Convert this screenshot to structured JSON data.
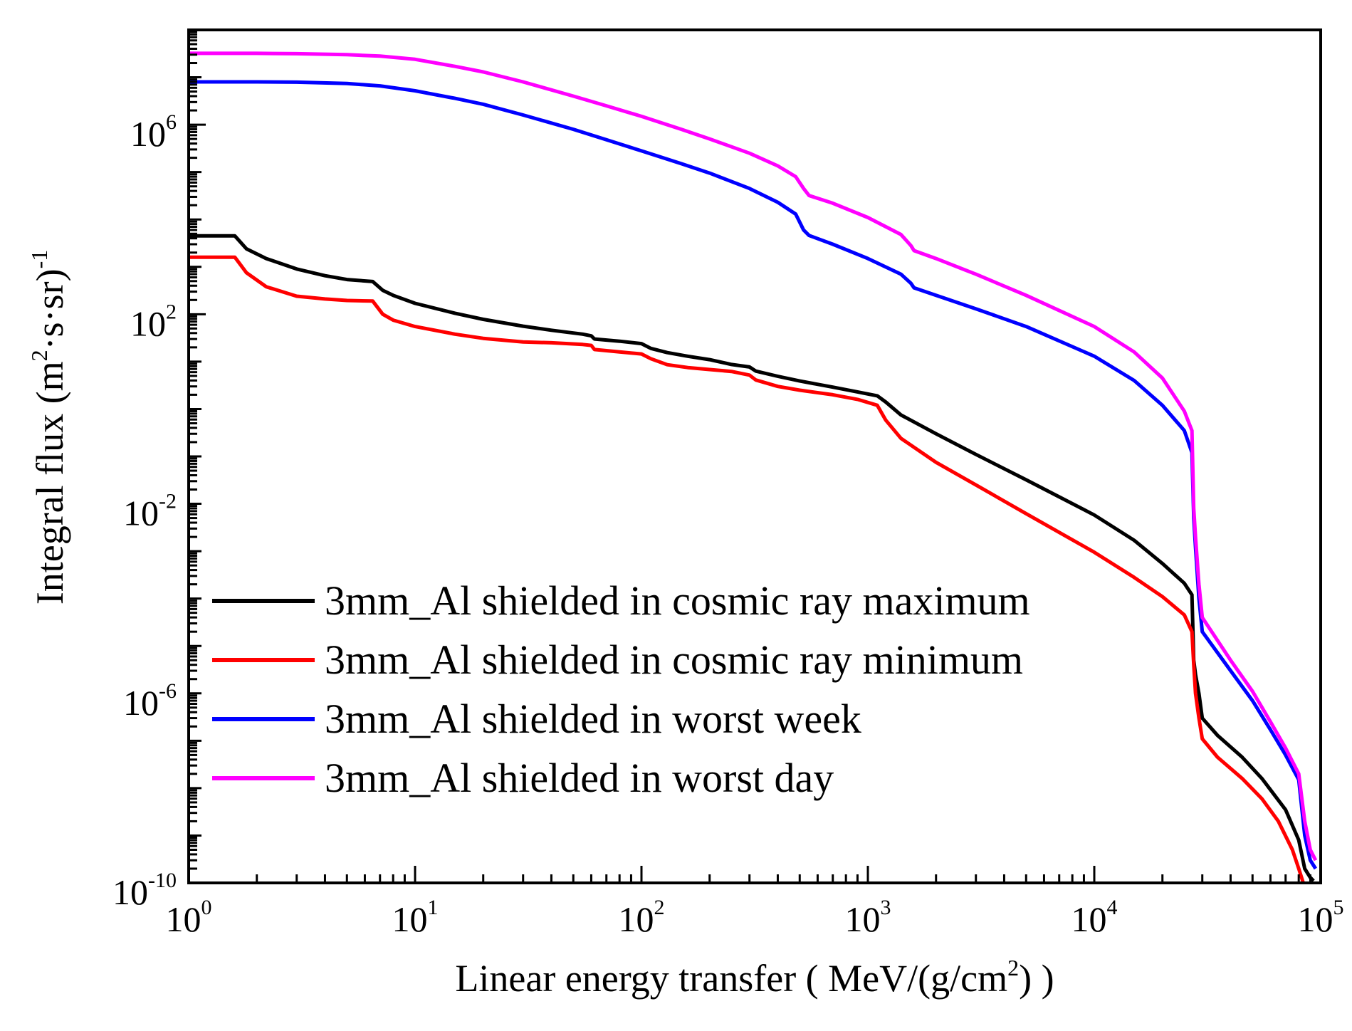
{
  "chart_data": {
    "type": "line",
    "xscale": "log",
    "yscale": "log",
    "xlim": [
      1,
      100000
    ],
    "ylim": [
      1e-10,
      100000000.0
    ],
    "grid": false,
    "legend_position": "lower-left",
    "xlabel": {
      "pre": "Linear energy transfer ( MeV/(g/cm",
      "sup": "2",
      "post": ") )"
    },
    "ylabel": {
      "pre": "Integral flux (m",
      "sup1": "2",
      "mid": "·s·sr)",
      "sup2": "-1"
    },
    "x_ticks": [
      {
        "base": "10",
        "exp": "0",
        "value": 1
      },
      {
        "base": "10",
        "exp": "1",
        "value": 10
      },
      {
        "base": "10",
        "exp": "2",
        "value": 100
      },
      {
        "base": "10",
        "exp": "3",
        "value": 1000
      },
      {
        "base": "10",
        "exp": "4",
        "value": 10000
      },
      {
        "base": "10",
        "exp": "5",
        "value": 100000
      }
    ],
    "y_ticks": [
      {
        "base": "10",
        "exp": "6",
        "value": 1000000.0
      },
      {
        "base": "10",
        "exp": "2",
        "value": 100.0
      },
      {
        "base": "10",
        "exp": "-2",
        "value": 0.01
      },
      {
        "base": "10",
        "exp": "-6",
        "value": 1e-06
      },
      {
        "base": "10",
        "exp": "-10",
        "value": 1e-10
      }
    ],
    "series": [
      {
        "name": "3mm_Al shielded in cosmic ray maximum",
        "color": "#000000",
        "points": [
          [
            1,
            4500.0
          ],
          [
            1.6,
            4500.0
          ],
          [
            1.8,
            2400.0
          ],
          [
            2.2,
            1500.0
          ],
          [
            3,
            900.0
          ],
          [
            4,
            650.0
          ],
          [
            5,
            540.0
          ],
          [
            6.5,
            490.0
          ],
          [
            7.2,
            320.0
          ],
          [
            8,
            250.0
          ],
          [
            10,
            170.0
          ],
          [
            15,
            105.0
          ],
          [
            20,
            78.0
          ],
          [
            30,
            56.0
          ],
          [
            40,
            46.0
          ],
          [
            55,
            38.0
          ],
          [
            60,
            35.0
          ],
          [
            62,
            30.0
          ],
          [
            80,
            27.0
          ],
          [
            100,
            24.0
          ],
          [
            110,
            19.0
          ],
          [
            130,
            15.5
          ],
          [
            160,
            13.0
          ],
          [
            200,
            11.0
          ],
          [
            250,
            8.7
          ],
          [
            300,
            7.7
          ],
          [
            320,
            6.3
          ],
          [
            400,
            4.9
          ],
          [
            500,
            3.9
          ],
          [
            700,
            2.9
          ],
          [
            900,
            2.3
          ],
          [
            1100,
            1.9
          ],
          [
            1200,
            1.4
          ],
          [
            1400,
            0.75
          ],
          [
            2000,
            0.3
          ],
          [
            3000,
            0.11
          ],
          [
            5000,
            0.032
          ],
          [
            10000,
            0.0058
          ],
          [
            15000,
            0.0017
          ],
          [
            20000,
            0.00055
          ],
          [
            25000,
            0.00021
          ],
          [
            27000,
            0.00012
          ],
          [
            27500,
            5e-06
          ],
          [
            28000,
            2.5e-06
          ],
          [
            29000,
            1e-06
          ],
          [
            30000,
            3e-07
          ],
          [
            35000,
            1.3e-07
          ],
          [
            45000,
            4.5e-08
          ],
          [
            55000,
            1.6e-08
          ],
          [
            70000,
            3.5e-09
          ],
          [
            80000,
            8e-10
          ],
          [
            85000,
            2e-10
          ],
          [
            90000,
            1.3e-10
          ],
          [
            93000,
            1.1e-10
          ]
        ]
      },
      {
        "name": "3mm_Al shielded in cosmic ray minimum",
        "color": "#ff0000",
        "points": [
          [
            1,
            1600.0
          ],
          [
            1.6,
            1600.0
          ],
          [
            1.8,
            750.0
          ],
          [
            2.2,
            380.0
          ],
          [
            3,
            240.0
          ],
          [
            4,
            210.0
          ],
          [
            5,
            195.0
          ],
          [
            6.5,
            190.0
          ],
          [
            7.2,
            100.0
          ],
          [
            8,
            75.0
          ],
          [
            10,
            55.0
          ],
          [
            15,
            38.0
          ],
          [
            20,
            31.0
          ],
          [
            30,
            26.0
          ],
          [
            40,
            25.0
          ],
          [
            55,
            23.0
          ],
          [
            60,
            22.0
          ],
          [
            62,
            18.0
          ],
          [
            80,
            16.0
          ],
          [
            100,
            14.5
          ],
          [
            110,
            11.5
          ],
          [
            130,
            8.6
          ],
          [
            160,
            7.5
          ],
          [
            200,
            6.8
          ],
          [
            250,
            6.2
          ],
          [
            300,
            5.2
          ],
          [
            320,
            4.1
          ],
          [
            400,
            3.0
          ],
          [
            500,
            2.5
          ],
          [
            700,
            2.0
          ],
          [
            900,
            1.6
          ],
          [
            1100,
            1.2
          ],
          [
            1200,
            0.58
          ],
          [
            1400,
            0.24
          ],
          [
            2000,
            0.075
          ],
          [
            3000,
            0.025
          ],
          [
            5000,
            0.0062
          ],
          [
            10000,
            0.00095
          ],
          [
            15000,
            0.00028
          ],
          [
            20000,
            0.00011
          ],
          [
            25000,
            4.5e-05
          ],
          [
            27000,
            2e-05
          ],
          [
            27500,
            4e-06
          ],
          [
            28000,
            1e-06
          ],
          [
            29000,
            3e-07
          ],
          [
            30000,
            1.1e-07
          ],
          [
            35000,
            4.5e-08
          ],
          [
            45000,
            1.6e-08
          ],
          [
            55000,
            6e-09
          ],
          [
            65000,
            2e-09
          ],
          [
            75000,
            5e-10
          ],
          [
            80000,
            2e-10
          ],
          [
            85000,
            8e-11
          ]
        ]
      },
      {
        "name": "3mm_Al shielded in worst week",
        "color": "#0000ff",
        "points": [
          [
            1,
            8000000.0
          ],
          [
            2,
            8000000.0
          ],
          [
            3,
            7900000.0
          ],
          [
            5,
            7400000.0
          ],
          [
            7,
            6600000.0
          ],
          [
            10,
            5200000.0
          ],
          [
            15,
            3600000.0
          ],
          [
            20,
            2700000.0
          ],
          [
            30,
            1600000.0
          ],
          [
            50,
            800000.0
          ],
          [
            70,
            480000.0
          ],
          [
            100,
            280000.0
          ],
          [
            150,
            150000.0
          ],
          [
            200,
            95000.0
          ],
          [
            300,
            45000.0
          ],
          [
            400,
            23000.0
          ],
          [
            480,
            13000.0
          ],
          [
            520,
            6000.0
          ],
          [
            550,
            4600.0
          ],
          [
            700,
            3000.0
          ],
          [
            1000,
            1500.0
          ],
          [
            1400,
            700.0
          ],
          [
            1550,
            450.0
          ],
          [
            1600,
            360.0
          ],
          [
            2000,
            250.0
          ],
          [
            3000,
            130.0
          ],
          [
            5000,
            55.0
          ],
          [
            10000,
            13.0
          ],
          [
            15000,
            4
          ],
          [
            20000,
            1.2
          ],
          [
            25000,
            0.35
          ],
          [
            27000,
            0.12
          ],
          [
            27500,
            0.005
          ],
          [
            28000,
            0.0012
          ],
          [
            29000,
            0.0001
          ],
          [
            30000,
            2e-05
          ],
          [
            40000,
            3e-06
          ],
          [
            50000,
            7e-07
          ],
          [
            60000,
            1.7e-07
          ],
          [
            70000,
            5e-08
          ],
          [
            80000,
            1.5e-08
          ],
          [
            85000,
            1e-09
          ],
          [
            90000,
            3e-10
          ],
          [
            95000,
            2e-10
          ]
        ]
      },
      {
        "name": "3mm_Al shielded in worst day",
        "color": "#ff00ff",
        "points": [
          [
            1,
            32000000.0
          ],
          [
            2,
            32000000.0
          ],
          [
            3,
            31500000.0
          ],
          [
            5,
            30000000.0
          ],
          [
            7,
            28000000.0
          ],
          [
            10,
            24000000.0
          ],
          [
            15,
            17000000.0
          ],
          [
            20,
            13000000.0
          ],
          [
            30,
            8000000.0
          ],
          [
            50,
            4000000.0
          ],
          [
            70,
            2500000.0
          ],
          [
            100,
            1500000.0
          ],
          [
            150,
            800000.0
          ],
          [
            200,
            500000.0
          ],
          [
            300,
            250000.0
          ],
          [
            400,
            135000.0
          ],
          [
            480,
            80000.0
          ],
          [
            520,
            45000.0
          ],
          [
            550,
            32000.0
          ],
          [
            700,
            22000.0
          ],
          [
            1000,
            11000.0
          ],
          [
            1400,
            4800.0
          ],
          [
            1550,
            2800.0
          ],
          [
            1600,
            2200.0
          ],
          [
            2000,
            1500.0
          ],
          [
            3000,
            700.0
          ],
          [
            5000,
            250.0
          ],
          [
            10000,
            55.0
          ],
          [
            15000,
            16.0
          ],
          [
            20000,
            4.5
          ],
          [
            25000,
            0.9
          ],
          [
            27000,
            0.35
          ],
          [
            27500,
            0.008
          ],
          [
            28000,
            0.002
          ],
          [
            29000,
            0.0002
          ],
          [
            30000,
            4e-05
          ],
          [
            40000,
            5e-06
          ],
          [
            50000,
            1.1e-06
          ],
          [
            60000,
            2.5e-07
          ],
          [
            70000,
            7e-08
          ],
          [
            80000,
            2e-08
          ],
          [
            85000,
            2e-09
          ],
          [
            90000,
            5e-10
          ],
          [
            95000,
            3e-10
          ]
        ]
      }
    ]
  }
}
